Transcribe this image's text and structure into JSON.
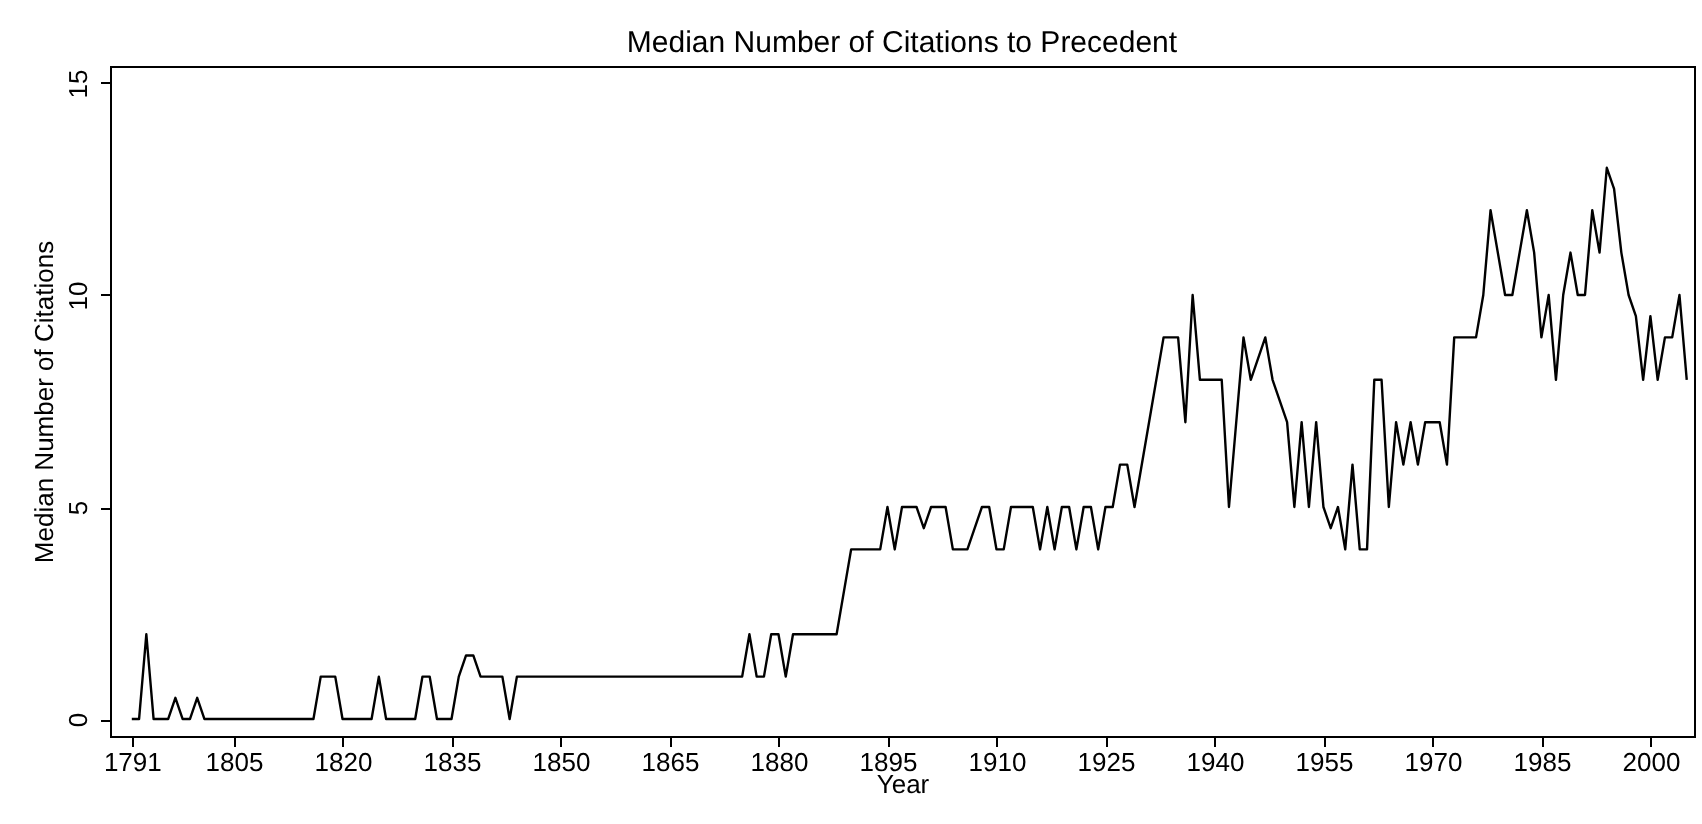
{
  "chart_data": {
    "type": "line",
    "title": "Median Number of Citations to Precedent",
    "xlabel": "Year",
    "ylabel": "Median Number of Citations",
    "x": [
      1791,
      1792,
      1793,
      1794,
      1796,
      1797,
      1798,
      1799,
      1800,
      1801,
      1816,
      1817,
      1819,
      1820,
      1824,
      1825,
      1826,
      1830,
      1831,
      1832,
      1833,
      1835,
      1836,
      1837,
      1838,
      1839,
      1842,
      1843,
      1844,
      1875,
      1876,
      1877,
      1878,
      1879,
      1880,
      1881,
      1882,
      1888,
      1890,
      1894,
      1895,
      1896,
      1897,
      1899,
      1900,
      1901,
      1903,
      1904,
      1906,
      1908,
      1909,
      1910,
      1911,
      1912,
      1915,
      1916,
      1917,
      1918,
      1919,
      1920,
      1921,
      1922,
      1923,
      1924,
      1925,
      1926,
      1927,
      1928,
      1929,
      1931,
      1933,
      1935,
      1936,
      1937,
      1938,
      1941,
      1942,
      1944,
      1945,
      1947,
      1948,
      1950,
      1951,
      1952,
      1953,
      1954,
      1955,
      1956,
      1957,
      1958,
      1959,
      1960,
      1961,
      1962,
      1963,
      1964,
      1965,
      1966,
      1967,
      1968,
      1969,
      1971,
      1972,
      1973,
      1976,
      1977,
      1978,
      1980,
      1981,
      1982,
      1983,
      1984,
      1985,
      1986,
      1987,
      1988,
      1989,
      1990,
      1991,
      1992,
      1993,
      1994,
      1995,
      1996,
      1997,
      1998,
      1999,
      2000,
      2001,
      2002,
      2003,
      2004,
      2005
    ],
    "series": [
      {
        "color": "#000000",
        "values": [
          0,
          0,
          2,
          0,
          0,
          0.5,
          0,
          0,
          0.5,
          0,
          0,
          1,
          1,
          0,
          0,
          1,
          0,
          0,
          1,
          1,
          0,
          0,
          1,
          1.5,
          1.5,
          1,
          1,
          0,
          1,
          1,
          2,
          1,
          1,
          2,
          2,
          1,
          2,
          2,
          4,
          4,
          5,
          4,
          5,
          5,
          4.5,
          5,
          5,
          4,
          4,
          5,
          5,
          4,
          4,
          5,
          5,
          4,
          5,
          4,
          5,
          5,
          4,
          5,
          5,
          4,
          5,
          5,
          6,
          6,
          5,
          7,
          9,
          9,
          7,
          10,
          8,
          8,
          5,
          9,
          8,
          9,
          8,
          7,
          5,
          7,
          5,
          7,
          5,
          4.5,
          5,
          4,
          6,
          4,
          4,
          8,
          8,
          5,
          7,
          6,
          7,
          6,
          7,
          7,
          6,
          9,
          9,
          10,
          12,
          10,
          10,
          11,
          12,
          11,
          9,
          10,
          8,
          10,
          11,
          10,
          10,
          12,
          11,
          13,
          12.5,
          11,
          10,
          9.5,
          8,
          9.5,
          8,
          9,
          9,
          10,
          8
        ]
      }
    ],
    "xlim": [
      1788,
      2006
    ],
    "xticks": [
      1791,
      1805,
      1820,
      1835,
      1850,
      1865,
      1880,
      1895,
      1910,
      1925,
      1940,
      1955,
      1970,
      1985,
      2000
    ],
    "ylim": [
      -0.4,
      15.4
    ],
    "yticks": [
      0,
      5,
      10,
      15
    ],
    "grid": false,
    "legend": false,
    "marker": "none",
    "line_style": "solid"
  }
}
